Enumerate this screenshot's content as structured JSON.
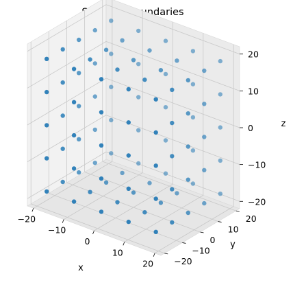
{
  "chart_data": {
    "type": "scatter",
    "projection": "3d",
    "title": "Selected Boundaries",
    "xlabel": "x",
    "ylabel": "y",
    "zlabel": "z",
    "xlim": [
      -22,
      22
    ],
    "ylim": [
      -22,
      22
    ],
    "zlim": [
      -22,
      22
    ],
    "xticks": [
      -20,
      -10,
      0,
      10,
      20
    ],
    "yticks": [
      -20,
      -10,
      0,
      10,
      20
    ],
    "zticks": [
      -20,
      -10,
      0,
      10,
      20
    ],
    "xtick_labels": [
      "−20",
      "−10",
      "0",
      "10",
      "20"
    ],
    "ytick_labels": [
      "−20",
      "−10",
      "0",
      "10",
      "20"
    ],
    "ztick_labels": [
      "−20",
      "−10",
      "0",
      "10",
      "20"
    ],
    "grid": true,
    "legend": "none",
    "marker_color": "#1f77b4",
    "pane_colors": [
      "#f2f2f2",
      "#ebebeb",
      "#e6e6e6"
    ],
    "series": [
      {
        "shape": "cube boundary points (surface of cube with edges ~±18)",
        "points": [
          [
            -18,
            -18,
            -18
          ],
          [
            -9,
            -18,
            -18
          ],
          [
            0,
            -18,
            -18
          ],
          [
            9,
            -18,
            -18
          ],
          [
            18,
            -18,
            -18
          ],
          [
            -18,
            -9,
            -18
          ],
          [
            -9,
            -9,
            -18
          ],
          [
            0,
            -9,
            -18
          ],
          [
            9,
            -9,
            -18
          ],
          [
            18,
            -9,
            -18
          ],
          [
            -18,
            0,
            -18
          ],
          [
            -9,
            0,
            -18
          ],
          [
            0,
            0,
            -18
          ],
          [
            9,
            0,
            -18
          ],
          [
            18,
            0,
            -18
          ],
          [
            -18,
            9,
            -18
          ],
          [
            -9,
            9,
            -18
          ],
          [
            0,
            9,
            -18
          ],
          [
            9,
            9,
            -18
          ],
          [
            18,
            9,
            -18
          ],
          [
            -18,
            18,
            -18
          ],
          [
            -9,
            18,
            -18
          ],
          [
            0,
            18,
            -18
          ],
          [
            9,
            18,
            -18
          ],
          [
            18,
            18,
            -18
          ],
          [
            -18,
            -18,
            18
          ],
          [
            -9,
            -18,
            18
          ],
          [
            0,
            -18,
            18
          ],
          [
            9,
            -18,
            18
          ],
          [
            18,
            -18,
            18
          ],
          [
            -18,
            -9,
            18
          ],
          [
            -9,
            -9,
            18
          ],
          [
            0,
            -9,
            18
          ],
          [
            9,
            -9,
            18
          ],
          [
            18,
            -9,
            18
          ],
          [
            -18,
            0,
            18
          ],
          [
            -9,
            0,
            18
          ],
          [
            0,
            0,
            18
          ],
          [
            9,
            0,
            18
          ],
          [
            18,
            0,
            18
          ],
          [
            -18,
            9,
            18
          ],
          [
            -9,
            9,
            18
          ],
          [
            0,
            9,
            18
          ],
          [
            9,
            9,
            18
          ],
          [
            18,
            9,
            18
          ],
          [
            -18,
            18,
            18
          ],
          [
            -9,
            18,
            18
          ],
          [
            0,
            18,
            18
          ],
          [
            9,
            18,
            18
          ],
          [
            18,
            18,
            18
          ],
          [
            -18,
            -18,
            -9
          ],
          [
            -9,
            -18,
            -9
          ],
          [
            0,
            -18,
            -9
          ],
          [
            9,
            -18,
            -9
          ],
          [
            18,
            -18,
            -9
          ],
          [
            -18,
            -18,
            0
          ],
          [
            -9,
            -18,
            0
          ],
          [
            0,
            -18,
            0
          ],
          [
            9,
            -18,
            0
          ],
          [
            18,
            -18,
            0
          ],
          [
            -18,
            -18,
            9
          ],
          [
            -9,
            -18,
            9
          ],
          [
            0,
            -18,
            9
          ],
          [
            9,
            -18,
            9
          ],
          [
            18,
            -18,
            9
          ],
          [
            -18,
            18,
            -9
          ],
          [
            -9,
            18,
            -9
          ],
          [
            0,
            18,
            -9
          ],
          [
            9,
            18,
            -9
          ],
          [
            18,
            18,
            -9
          ],
          [
            -18,
            18,
            0
          ],
          [
            -9,
            18,
            0
          ],
          [
            0,
            18,
            0
          ],
          [
            9,
            18,
            0
          ],
          [
            18,
            18,
            0
          ],
          [
            -18,
            18,
            9
          ],
          [
            -9,
            18,
            9
          ],
          [
            0,
            18,
            9
          ],
          [
            9,
            18,
            9
          ],
          [
            18,
            18,
            9
          ],
          [
            -18,
            -9,
            -9
          ],
          [
            -18,
            0,
            -9
          ],
          [
            -18,
            9,
            -9
          ],
          [
            -18,
            -9,
            0
          ],
          [
            -18,
            0,
            0
          ],
          [
            -18,
            9,
            0
          ],
          [
            -18,
            -9,
            9
          ],
          [
            -18,
            0,
            9
          ],
          [
            -18,
            9,
            9
          ],
          [
            18,
            -9,
            -9
          ],
          [
            18,
            0,
            -9
          ],
          [
            18,
            9,
            -9
          ],
          [
            18,
            -9,
            0
          ],
          [
            18,
            0,
            0
          ],
          [
            18,
            9,
            0
          ],
          [
            18,
            -9,
            9
          ],
          [
            18,
            0,
            9
          ],
          [
            18,
            9,
            9
          ]
        ]
      }
    ]
  }
}
